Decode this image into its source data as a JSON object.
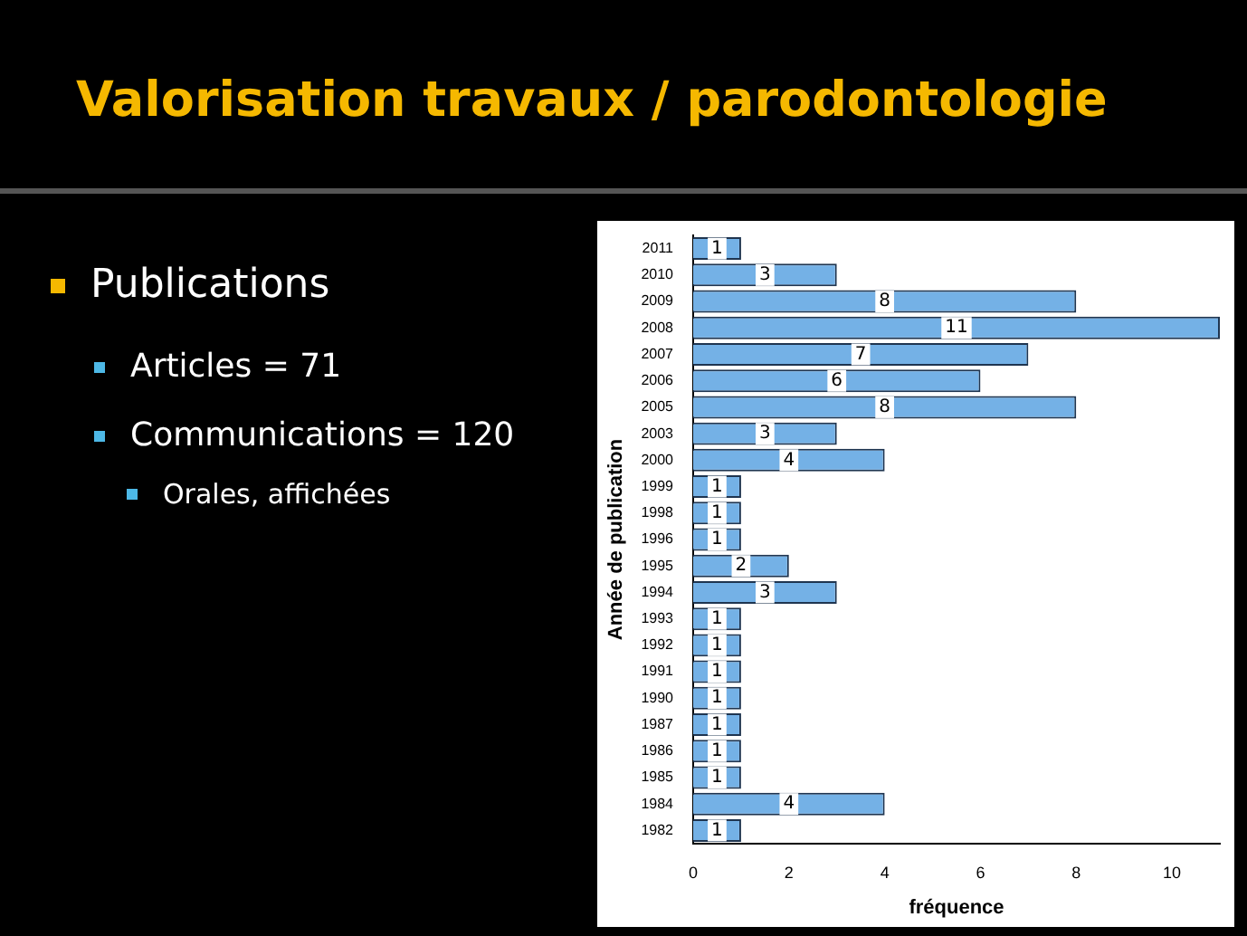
{
  "chart_data": {
    "type": "bar",
    "orientation": "horizontal",
    "title": "Valorisation travaux / parodontologie",
    "annotations": [
      "Publications",
      "Articles = 71",
      "Communications = 120",
      "Orales, affichées"
    ],
    "xlabel": "fréquence",
    "ylabel": "Année de publication",
    "categories": [
      "2011",
      "2010",
      "2009",
      "2008",
      "2007",
      "2006",
      "2005",
      "2003",
      "2000",
      "1999",
      "1998",
      "1996",
      "1995",
      "1994",
      "1993",
      "1992",
      "1991",
      "1990",
      "1987",
      "1986",
      "1985",
      "1984",
      "1982"
    ],
    "values": [
      1,
      3,
      8,
      11,
      7,
      6,
      8,
      3,
      4,
      1,
      1,
      1,
      2,
      3,
      1,
      1,
      1,
      1,
      1,
      1,
      1,
      4,
      1
    ],
    "color": "#74b1e6",
    "xlim": [
      0,
      11
    ],
    "xticks": [
      0,
      2,
      4,
      6,
      8,
      10
    ],
    "data_labels": true,
    "grid": false,
    "legend": false
  }
}
